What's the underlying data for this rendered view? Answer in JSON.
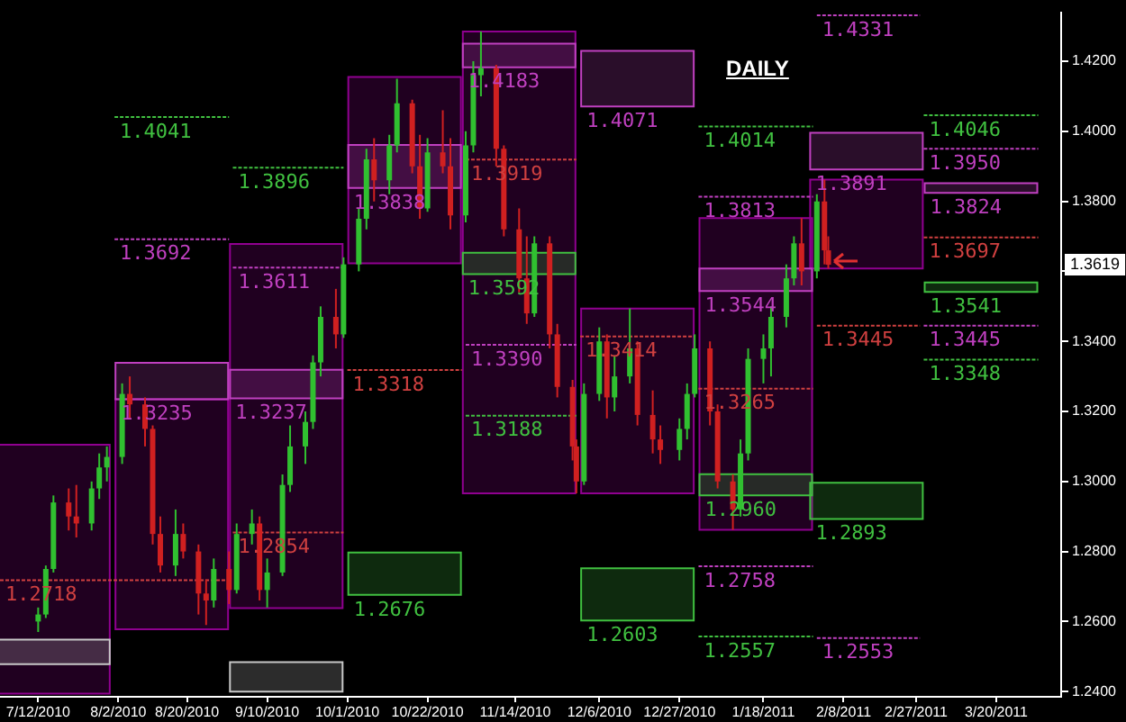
{
  "chart_data": {
    "type": "candlestick",
    "title": "DAILY",
    "grid": false,
    "xlim": [
      "2010-07-02",
      "2011-04-06"
    ],
    "ylim": [
      1.2385,
      1.434
    ],
    "xticks": [
      {
        "value": "2010-07-12",
        "label": "7/12/2010"
      },
      {
        "value": "2010-08-02",
        "label": "8/2/2010"
      },
      {
        "value": "2010-08-20",
        "label": "8/20/2010"
      },
      {
        "value": "2010-09-10",
        "label": "9/10/2010"
      },
      {
        "value": "2010-10-01",
        "label": "10/1/2010"
      },
      {
        "value": "2010-10-22",
        "label": "10/22/2010"
      },
      {
        "value": "2010-11-14",
        "label": "11/14/2010"
      },
      {
        "value": "2010-12-06",
        "label": "12/6/2010"
      },
      {
        "value": "2010-12-27",
        "label": "12/27/2010"
      },
      {
        "value": "2011-01-18",
        "label": "1/18/2011"
      },
      {
        "value": "2011-02-08",
        "label": "2/8/2011"
      },
      {
        "value": "2011-02-27",
        "label": "2/27/2011"
      },
      {
        "value": "2011-03-20",
        "label": "3/20/2011"
      }
    ],
    "yticks": [
      {
        "value": 1.24,
        "label": "1.2400"
      },
      {
        "value": 1.26,
        "label": "1.2600"
      },
      {
        "value": 1.28,
        "label": "1.2800"
      },
      {
        "value": 1.3,
        "label": "1.3000"
      },
      {
        "value": 1.32,
        "label": "1.3200"
      },
      {
        "value": 1.34,
        "label": "1.3400"
      },
      {
        "value": 1.36,
        "label": null
      },
      {
        "value": 1.38,
        "label": "1.3800"
      },
      {
        "value": 1.4,
        "label": "1.4000"
      },
      {
        "value": 1.42,
        "label": "1.4200"
      }
    ],
    "annotations": [
      {
        "text": "1.3619",
        "y": 1.3619
      }
    ],
    "series": [
      {
        "x": [
          "2010-07-12",
          "2010-07-14",
          "2010-07-16",
          "2010-07-20",
          "2010-07-22",
          "2010-07-26",
          "2010-07-28",
          "2010-07-30",
          "2010-08-03",
          "2010-08-05",
          "2010-08-09",
          "2010-08-11",
          "2010-08-13",
          "2010-08-17",
          "2010-08-19",
          "2010-08-23",
          "2010-08-25",
          "2010-08-27",
          "2010-08-31",
          "2010-09-02",
          "2010-09-06",
          "2010-09-08",
          "2010-09-10",
          "2010-09-14",
          "2010-09-16",
          "2010-09-20",
          "2010-09-22",
          "2010-09-24",
          "2010-09-28",
          "2010-09-30",
          "2010-10-04",
          "2010-10-06",
          "2010-10-08",
          "2010-10-12",
          "2010-10-14",
          "2010-10-18",
          "2010-10-20",
          "2010-10-22",
          "2010-10-26",
          "2010-10-28",
          "2010-11-01",
          "2010-11-03",
          "2010-11-05",
          "2010-11-09",
          "2010-11-11",
          "2010-11-15",
          "2010-11-17",
          "2010-11-19",
          "2010-11-23",
          "2010-11-25",
          "2010-11-29",
          "2010-11-30",
          "2010-12-02",
          "2010-12-06",
          "2010-12-08",
          "2010-12-10",
          "2010-12-14",
          "2010-12-16",
          "2010-12-20",
          "2010-12-22",
          "2010-12-27",
          "2010-12-29",
          "2010-12-31",
          "2011-01-04",
          "2011-01-06",
          "2011-01-10",
          "2011-01-12",
          "2011-01-14",
          "2011-01-18",
          "2011-01-20",
          "2011-01-24",
          "2011-01-26",
          "2011-01-28",
          "2011-02-01",
          "2011-02-03",
          "2011-02-04"
        ],
        "ohlc": [
          [
            1.26,
            1.264,
            1.257,
            1.262
          ],
          [
            1.262,
            1.276,
            1.261,
            1.275
          ],
          [
            1.275,
            1.296,
            1.274,
            1.294
          ],
          [
            1.294,
            1.298,
            1.286,
            1.29
          ],
          [
            1.29,
            1.299,
            1.284,
            1.288
          ],
          [
            1.288,
            1.3,
            1.286,
            1.298
          ],
          [
            1.298,
            1.308,
            1.295,
            1.304
          ],
          [
            1.304,
            1.31,
            1.3,
            1.307
          ],
          [
            1.307,
            1.328,
            1.305,
            1.325
          ],
          [
            1.325,
            1.33,
            1.318,
            1.322
          ],
          [
            1.322,
            1.324,
            1.31,
            1.315
          ],
          [
            1.315,
            1.316,
            1.282,
            1.285
          ],
          [
            1.285,
            1.29,
            1.274,
            1.276
          ],
          [
            1.276,
            1.292,
            1.273,
            1.285
          ],
          [
            1.285,
            1.288,
            1.278,
            1.28
          ],
          [
            1.28,
            1.282,
            1.262,
            1.268
          ],
          [
            1.268,
            1.272,
            1.259,
            1.266
          ],
          [
            1.266,
            1.278,
            1.264,
            1.275
          ],
          [
            1.275,
            1.28,
            1.265,
            1.269
          ],
          [
            1.269,
            1.288,
            1.268,
            1.285
          ],
          [
            1.285,
            1.292,
            1.282,
            1.288
          ],
          [
            1.288,
            1.29,
            1.266,
            1.269
          ],
          [
            1.269,
            1.278,
            1.264,
            1.274
          ],
          [
            1.274,
            1.302,
            1.273,
            1.299
          ],
          [
            1.299,
            1.316,
            1.297,
            1.31
          ],
          [
            1.31,
            1.32,
            1.305,
            1.317
          ],
          [
            1.317,
            1.336,
            1.315,
            1.334
          ],
          [
            1.334,
            1.35,
            1.33,
            1.347
          ],
          [
            1.347,
            1.355,
            1.338,
            1.342
          ],
          [
            1.342,
            1.364,
            1.341,
            1.362
          ],
          [
            1.362,
            1.378,
            1.36,
            1.375
          ],
          [
            1.375,
            1.395,
            1.372,
            1.392
          ],
          [
            1.392,
            1.398,
            1.38,
            1.386
          ],
          [
            1.386,
            1.399,
            1.382,
            1.396
          ],
          [
            1.396,
            1.415,
            1.394,
            1.408
          ],
          [
            1.408,
            1.409,
            1.388,
            1.39
          ],
          [
            1.39,
            1.399,
            1.375,
            1.378
          ],
          [
            1.378,
            1.398,
            1.377,
            1.394
          ],
          [
            1.394,
            1.406,
            1.388,
            1.39
          ],
          [
            1.39,
            1.398,
            1.372,
            1.376
          ],
          [
            1.376,
            1.4,
            1.374,
            1.396
          ],
          [
            1.396,
            1.42,
            1.394,
            1.416
          ],
          [
            1.416,
            1.4285,
            1.41,
            1.418
          ],
          [
            1.418,
            1.419,
            1.39,
            1.395
          ],
          [
            1.395,
            1.396,
            1.37,
            1.372
          ],
          [
            1.372,
            1.378,
            1.354,
            1.358
          ],
          [
            1.358,
            1.37,
            1.345,
            1.348
          ],
          [
            1.348,
            1.37,
            1.347,
            1.368
          ],
          [
            1.368,
            1.37,
            1.338,
            1.342
          ],
          [
            1.342,
            1.345,
            1.324,
            1.327
          ],
          [
            1.327,
            1.329,
            1.306,
            1.31
          ],
          [
            1.31,
            1.312,
            1.2966,
            1.3
          ],
          [
            1.3,
            1.328,
            1.299,
            1.325
          ],
          [
            1.325,
            1.344,
            1.323,
            1.34
          ],
          [
            1.34,
            1.342,
            1.318,
            1.324
          ],
          [
            1.324,
            1.336,
            1.32,
            1.33
          ],
          [
            1.33,
            1.3494,
            1.328,
            1.338
          ],
          [
            1.338,
            1.34,
            1.316,
            1.319
          ],
          [
            1.319,
            1.326,
            1.308,
            1.312
          ],
          [
            1.312,
            1.316,
            1.305,
            1.309
          ],
          [
            1.309,
            1.318,
            1.306,
            1.315
          ],
          [
            1.315,
            1.328,
            1.312,
            1.325
          ],
          [
            1.325,
            1.342,
            1.324,
            1.338
          ],
          [
            1.338,
            1.34,
            1.316,
            1.32
          ],
          [
            1.32,
            1.322,
            1.298,
            1.3
          ],
          [
            1.3,
            1.302,
            1.2862,
            1.292
          ],
          [
            1.292,
            1.312,
            1.29,
            1.308
          ],
          [
            1.308,
            1.338,
            1.306,
            1.335
          ],
          [
            1.335,
            1.342,
            1.328,
            1.338
          ],
          [
            1.338,
            1.35,
            1.33,
            1.347
          ],
          [
            1.347,
            1.362,
            1.344,
            1.358
          ],
          [
            1.358,
            1.37,
            1.356,
            1.368
          ],
          [
            1.368,
            1.3752,
            1.356,
            1.36
          ],
          [
            1.36,
            1.382,
            1.358,
            1.38
          ],
          [
            1.38,
            1.3862,
            1.362,
            1.366
          ],
          [
            1.366,
            1.37,
            1.3608,
            1.3619
          ]
        ]
      },
      {
        "type": "bar",
        "color": "#900090",
        "x": [
          "2010-07-16",
          "2010-08-16",
          "2010-09-15",
          "2010-10-16",
          "2010-11-15",
          "2010-12-16",
          "2011-01-16",
          "2011-02-14"
        ],
        "base": [
          1.2394,
          1.2578,
          1.2638,
          1.3623,
          1.2966,
          1.2966,
          1.2862,
          1.3608
        ],
        "values": [
          0.0711,
          0.0657,
          0.104,
          0.0532,
          0.1319,
          0.0528,
          0.089,
          0.0254
        ]
      },
      {
        "type": "bar",
        "color": "#c8c8c8",
        "x": [
          "2010-07-16"
        ],
        "base": [
          1.2478
        ],
        "values": [
          0.007
        ]
      },
      {
        "type": "bar",
        "name": "1.3235",
        "color": "#c040c0",
        "x": [
          "2010-08-16"
        ],
        "base": [
          1.3235
        ],
        "values": [
          0.0104
        ]
      },
      {
        "type": "bar",
        "name": "1.3237",
        "color": "#c040c0",
        "x": [
          "2010-09-15"
        ],
        "base": [
          1.3237
        ],
        "values": [
          0.0082
        ]
      },
      {
        "type": "bar",
        "color": "#c8c8c8",
        "x": [
          "2010-09-15"
        ],
        "base": [
          1.24
        ],
        "values": [
          0.0084
        ]
      },
      {
        "type": "bar",
        "name": "1.3838",
        "color": "#c040c0",
        "x": [
          "2010-10-16"
        ],
        "base": [
          1.3838
        ],
        "values": [
          0.0123
        ]
      },
      {
        "type": "bar",
        "name": "1.2676",
        "color": "#40c040",
        "x": [
          "2010-10-16"
        ],
        "base": [
          1.2676
        ],
        "values": [
          0.0121
        ]
      },
      {
        "type": "bar",
        "name": "1.4183",
        "color": "#c040c0",
        "x": [
          "2010-11-15"
        ],
        "base": [
          1.4183
        ],
        "values": [
          0.0067
        ]
      },
      {
        "type": "bar",
        "name": "1.3592",
        "color": "#40c040",
        "x": [
          "2010-11-15"
        ],
        "base": [
          1.3592
        ],
        "values": [
          0.0061
        ]
      },
      {
        "type": "bar",
        "name": "1.4071",
        "color": "#c040c0",
        "x": [
          "2010-12-16"
        ],
        "base": [
          1.4071
        ],
        "values": [
          0.0159
        ]
      },
      {
        "type": "bar",
        "name": "1.2603",
        "color": "#40c040",
        "x": [
          "2010-12-16"
        ],
        "base": [
          1.2603
        ],
        "values": [
          0.0149
        ]
      },
      {
        "type": "bar",
        "name": "1.3544",
        "color": "#c040c0",
        "x": [
          "2011-01-16"
        ],
        "base": [
          1.3544
        ],
        "values": [
          0.0064
        ]
      },
      {
        "type": "bar",
        "name": "1.2960",
        "color": "#40c040",
        "x": [
          "2011-01-16"
        ],
        "base": [
          1.296
        ],
        "values": [
          0.0061
        ]
      },
      {
        "type": "bar",
        "name": "1.3891",
        "color": "#c040c0",
        "x": [
          "2011-02-14"
        ],
        "base": [
          1.3891
        ],
        "values": [
          0.0105
        ]
      },
      {
        "type": "bar",
        "name": "1.2893",
        "color": "#40c040",
        "x": [
          "2011-02-14"
        ],
        "base": [
          1.2893
        ],
        "values": [
          0.0103
        ]
      },
      {
        "type": "bar",
        "name": "1.3824",
        "color": "#c040c0",
        "x": [
          "2011-03-16"
        ],
        "base": [
          1.3824
        ],
        "values": [
          0.0028
        ]
      },
      {
        "type": "bar",
        "name": "1.3541",
        "color": "#40c040",
        "x": [
          "2011-03-16"
        ],
        "base": [
          1.3541
        ],
        "values": [
          0.0027
        ]
      },
      {
        "type": "line",
        "name": "1.4041",
        "color": "#40c040",
        "line_style": "dotted",
        "x": [
          "2010-08-01",
          "2010-08-31"
        ],
        "values": [
          1.4041,
          1.4041
        ]
      },
      {
        "type": "line",
        "name": "1.3692",
        "color": "#c040c0",
        "line_style": "dotted",
        "x": [
          "2010-08-01",
          "2010-08-31"
        ],
        "values": [
          1.3692,
          1.3692
        ]
      },
      {
        "type": "line",
        "name": "1.2718",
        "color": "#d04040",
        "line_style": "dotted",
        "x": [
          "2010-07-02",
          "2010-08-31"
        ],
        "values": [
          1.2718,
          1.2718
        ]
      },
      {
        "type": "line",
        "name": "1.3896",
        "color": "#40c040",
        "line_style": "dotted",
        "x": [
          "2010-09-01",
          "2010-09-30"
        ],
        "values": [
          1.3896,
          1.3896
        ]
      },
      {
        "type": "line",
        "name": "1.3611",
        "color": "#c040c0",
        "line_style": "dotted",
        "x": [
          "2010-09-01",
          "2010-09-30"
        ],
        "values": [
          1.3611,
          1.3611
        ]
      },
      {
        "type": "line",
        "name": "1.2854",
        "color": "#d04040",
        "line_style": "dotted",
        "x": [
          "2010-09-01",
          "2010-09-30"
        ],
        "values": [
          1.2854,
          1.2854
        ]
      },
      {
        "type": "line",
        "name": "1.3318",
        "color": "#d04040",
        "line_style": "dotted",
        "x": [
          "2010-10-01",
          "2010-10-31"
        ],
        "values": [
          1.3318,
          1.3318
        ]
      },
      {
        "type": "line",
        "name": "1.3919",
        "color": "#d04040",
        "line_style": "dotted",
        "x": [
          "2010-11-01",
          "2010-11-30"
        ],
        "values": [
          1.3919,
          1.3919
        ]
      },
      {
        "type": "line",
        "name": "1.3390",
        "color": "#c040c0",
        "line_style": "dotted",
        "x": [
          "2010-11-01",
          "2010-11-30"
        ],
        "values": [
          1.339,
          1.339
        ]
      },
      {
        "type": "line",
        "name": "1.3188",
        "color": "#40c040",
        "line_style": "dotted",
        "x": [
          "2010-11-01",
          "2010-11-30"
        ],
        "values": [
          1.3188,
          1.3188
        ]
      },
      {
        "type": "line",
        "name": "1.3414",
        "color": "#d04040",
        "line_style": "dotted",
        "x": [
          "2010-12-01",
          "2010-12-31"
        ],
        "values": [
          1.3414,
          1.3414
        ]
      },
      {
        "type": "line",
        "name": "1.4014",
        "color": "#40c040",
        "line_style": "dotted",
        "x": [
          "2011-01-01",
          "2011-01-31"
        ],
        "values": [
          1.4014,
          1.4014
        ]
      },
      {
        "type": "line",
        "name": "1.3813",
        "color": "#c040c0",
        "line_style": "dotted",
        "x": [
          "2011-01-01",
          "2011-01-31"
        ],
        "values": [
          1.3813,
          1.3813
        ]
      },
      {
        "type": "line",
        "name": "1.3265",
        "color": "#d04040",
        "line_style": "dotted",
        "x": [
          "2011-01-01",
          "2011-01-31"
        ],
        "values": [
          1.3265,
          1.3265
        ]
      },
      {
        "type": "line",
        "name": "1.2758",
        "color": "#c040c0",
        "line_style": "dotted",
        "x": [
          "2011-01-01",
          "2011-01-31"
        ],
        "values": [
          1.2758,
          1.2758
        ]
      },
      {
        "type": "line",
        "name": "1.2557",
        "color": "#40c040",
        "line_style": "dotted",
        "x": [
          "2011-01-01",
          "2011-01-31"
        ],
        "values": [
          1.2557,
          1.2557
        ]
      },
      {
        "type": "line",
        "name": "1.4331",
        "color": "#c040c0",
        "line_style": "dotted",
        "x": [
          "2011-02-01",
          "2011-02-28"
        ],
        "values": [
          1.4331,
          1.4331
        ]
      },
      {
        "type": "line",
        "name": "1.3445",
        "color": "#d04040",
        "line_style": "dotted",
        "x": [
          "2011-02-01",
          "2011-02-28"
        ],
        "values": [
          1.3445,
          1.3445
        ]
      },
      {
        "type": "line",
        "name": "1.2553",
        "color": "#c040c0",
        "line_style": "dotted",
        "x": [
          "2011-02-01",
          "2011-02-28"
        ],
        "values": [
          1.2553,
          1.2553
        ]
      },
      {
        "type": "line",
        "name": "1.4046",
        "color": "#40c040",
        "line_style": "dotted",
        "x": [
          "2011-03-01",
          "2011-03-31"
        ],
        "values": [
          1.4046,
          1.4046
        ]
      },
      {
        "type": "line",
        "name": "1.3950",
        "color": "#c040c0",
        "line_style": "dotted",
        "x": [
          "2011-03-01",
          "2011-03-31"
        ],
        "values": [
          1.395,
          1.395
        ]
      },
      {
        "type": "line",
        "name": "1.3697",
        "color": "#d04040",
        "line_style": "dotted",
        "x": [
          "2011-03-01",
          "2011-03-31"
        ],
        "values": [
          1.3697,
          1.3697
        ]
      },
      {
        "type": "line",
        "name": "1.3445",
        "color": "#c040c0",
        "line_style": "dotted",
        "x": [
          "2011-03-01",
          "2011-03-31"
        ],
        "values": [
          1.3445,
          1.3445
        ]
      },
      {
        "type": "line",
        "name": "1.3348",
        "color": "#40c040",
        "line_style": "dotted",
        "x": [
          "2011-03-01",
          "2011-03-31"
        ],
        "values": [
          1.3348,
          1.3348
        ]
      }
    ]
  }
}
